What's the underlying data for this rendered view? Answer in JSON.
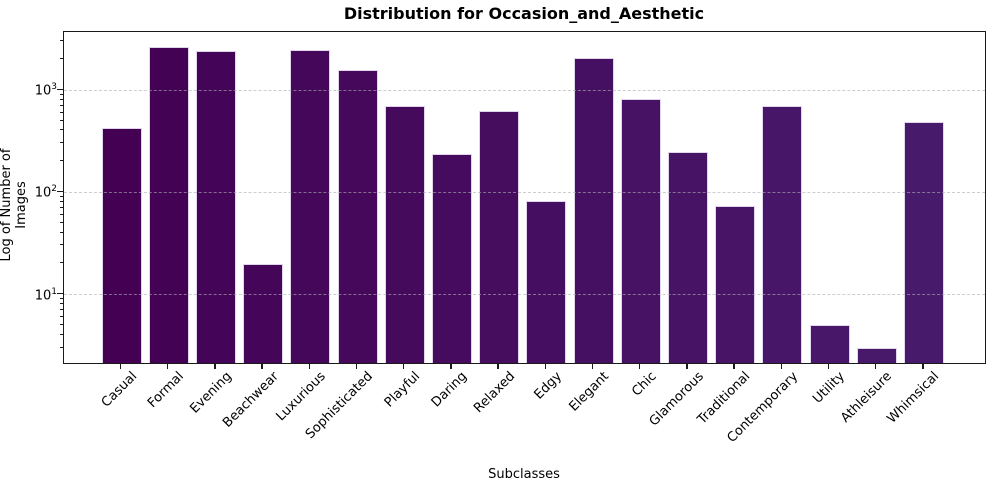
{
  "chart_data": {
    "type": "bar",
    "title": "Distribution for Occasion_and_Aesthetic",
    "xlabel": "Subclasses",
    "ylabel": "Log of Number of Images",
    "yscale": "log",
    "ylim": [
      2.14,
      3726
    ],
    "ytick_values": [
      10,
      100,
      1000
    ],
    "ytick_labels": [
      "10¹",
      "10²",
      "10³"
    ],
    "grid": "horizontal-dashed",
    "legend": null,
    "categories": [
      "Casual",
      "Formal",
      "Evening",
      "Beachwear",
      "Luxurious",
      "Sophisticated",
      "Playful",
      "Daring",
      "Relaxed",
      "Edgy",
      "Elegant",
      "Chic",
      "Glamorous",
      "Traditional",
      "Contemporary",
      "Utility",
      "Athleisure",
      "Whimsical"
    ],
    "values": [
      430,
      2660,
      2450,
      20,
      2470,
      1570,
      700,
      240,
      630,
      83,
      2080,
      820,
      250,
      73,
      700,
      5,
      3,
      490
    ],
    "bar_color_start": "#440154",
    "bar_color_end": "#481a6c",
    "bar_edge_color": "#e9e1f3",
    "grid_color": "#b4b1ba",
    "spine_color": "#1a1a1a"
  }
}
